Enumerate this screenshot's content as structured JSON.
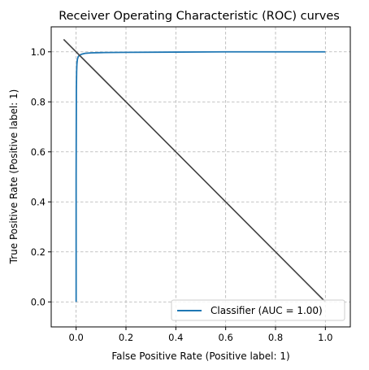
{
  "chart_data": {
    "type": "line",
    "title": "Receiver Operating Characteristic (ROC) curves",
    "xlabel": "False Positive Rate (Positive label: 1)",
    "ylabel": "True Positive Rate (Positive label: 1)",
    "xlim": [
      -0.1,
      1.1
    ],
    "ylim": [
      -0.1,
      1.1
    ],
    "xticks": [
      "0.0",
      "0.2",
      "0.4",
      "0.6",
      "0.8",
      "1.0"
    ],
    "yticks": [
      "0.0",
      "0.2",
      "0.4",
      "0.6",
      "0.8",
      "1.0"
    ],
    "grid": true,
    "legend_position": "bottom-right",
    "series": [
      {
        "name": "Classifier (AUC = 1.00)",
        "color": "#1f77b4",
        "x": [
          0.0,
          0.0,
          0.001,
          0.002,
          0.003,
          0.005,
          0.008,
          0.012,
          0.02,
          0.035,
          0.06,
          0.1,
          0.2,
          0.4,
          0.6,
          0.8,
          1.0
        ],
        "y": [
          0.0,
          0.5,
          0.85,
          0.92,
          0.95,
          0.97,
          0.98,
          0.985,
          0.99,
          0.994,
          0.996,
          0.997,
          0.998,
          0.999,
          1.0,
          1.0,
          1.0
        ]
      },
      {
        "name": "",
        "color": "#404040",
        "x": [
          -0.05,
          1.0
        ],
        "y": [
          1.05,
          0.0
        ]
      }
    ]
  }
}
